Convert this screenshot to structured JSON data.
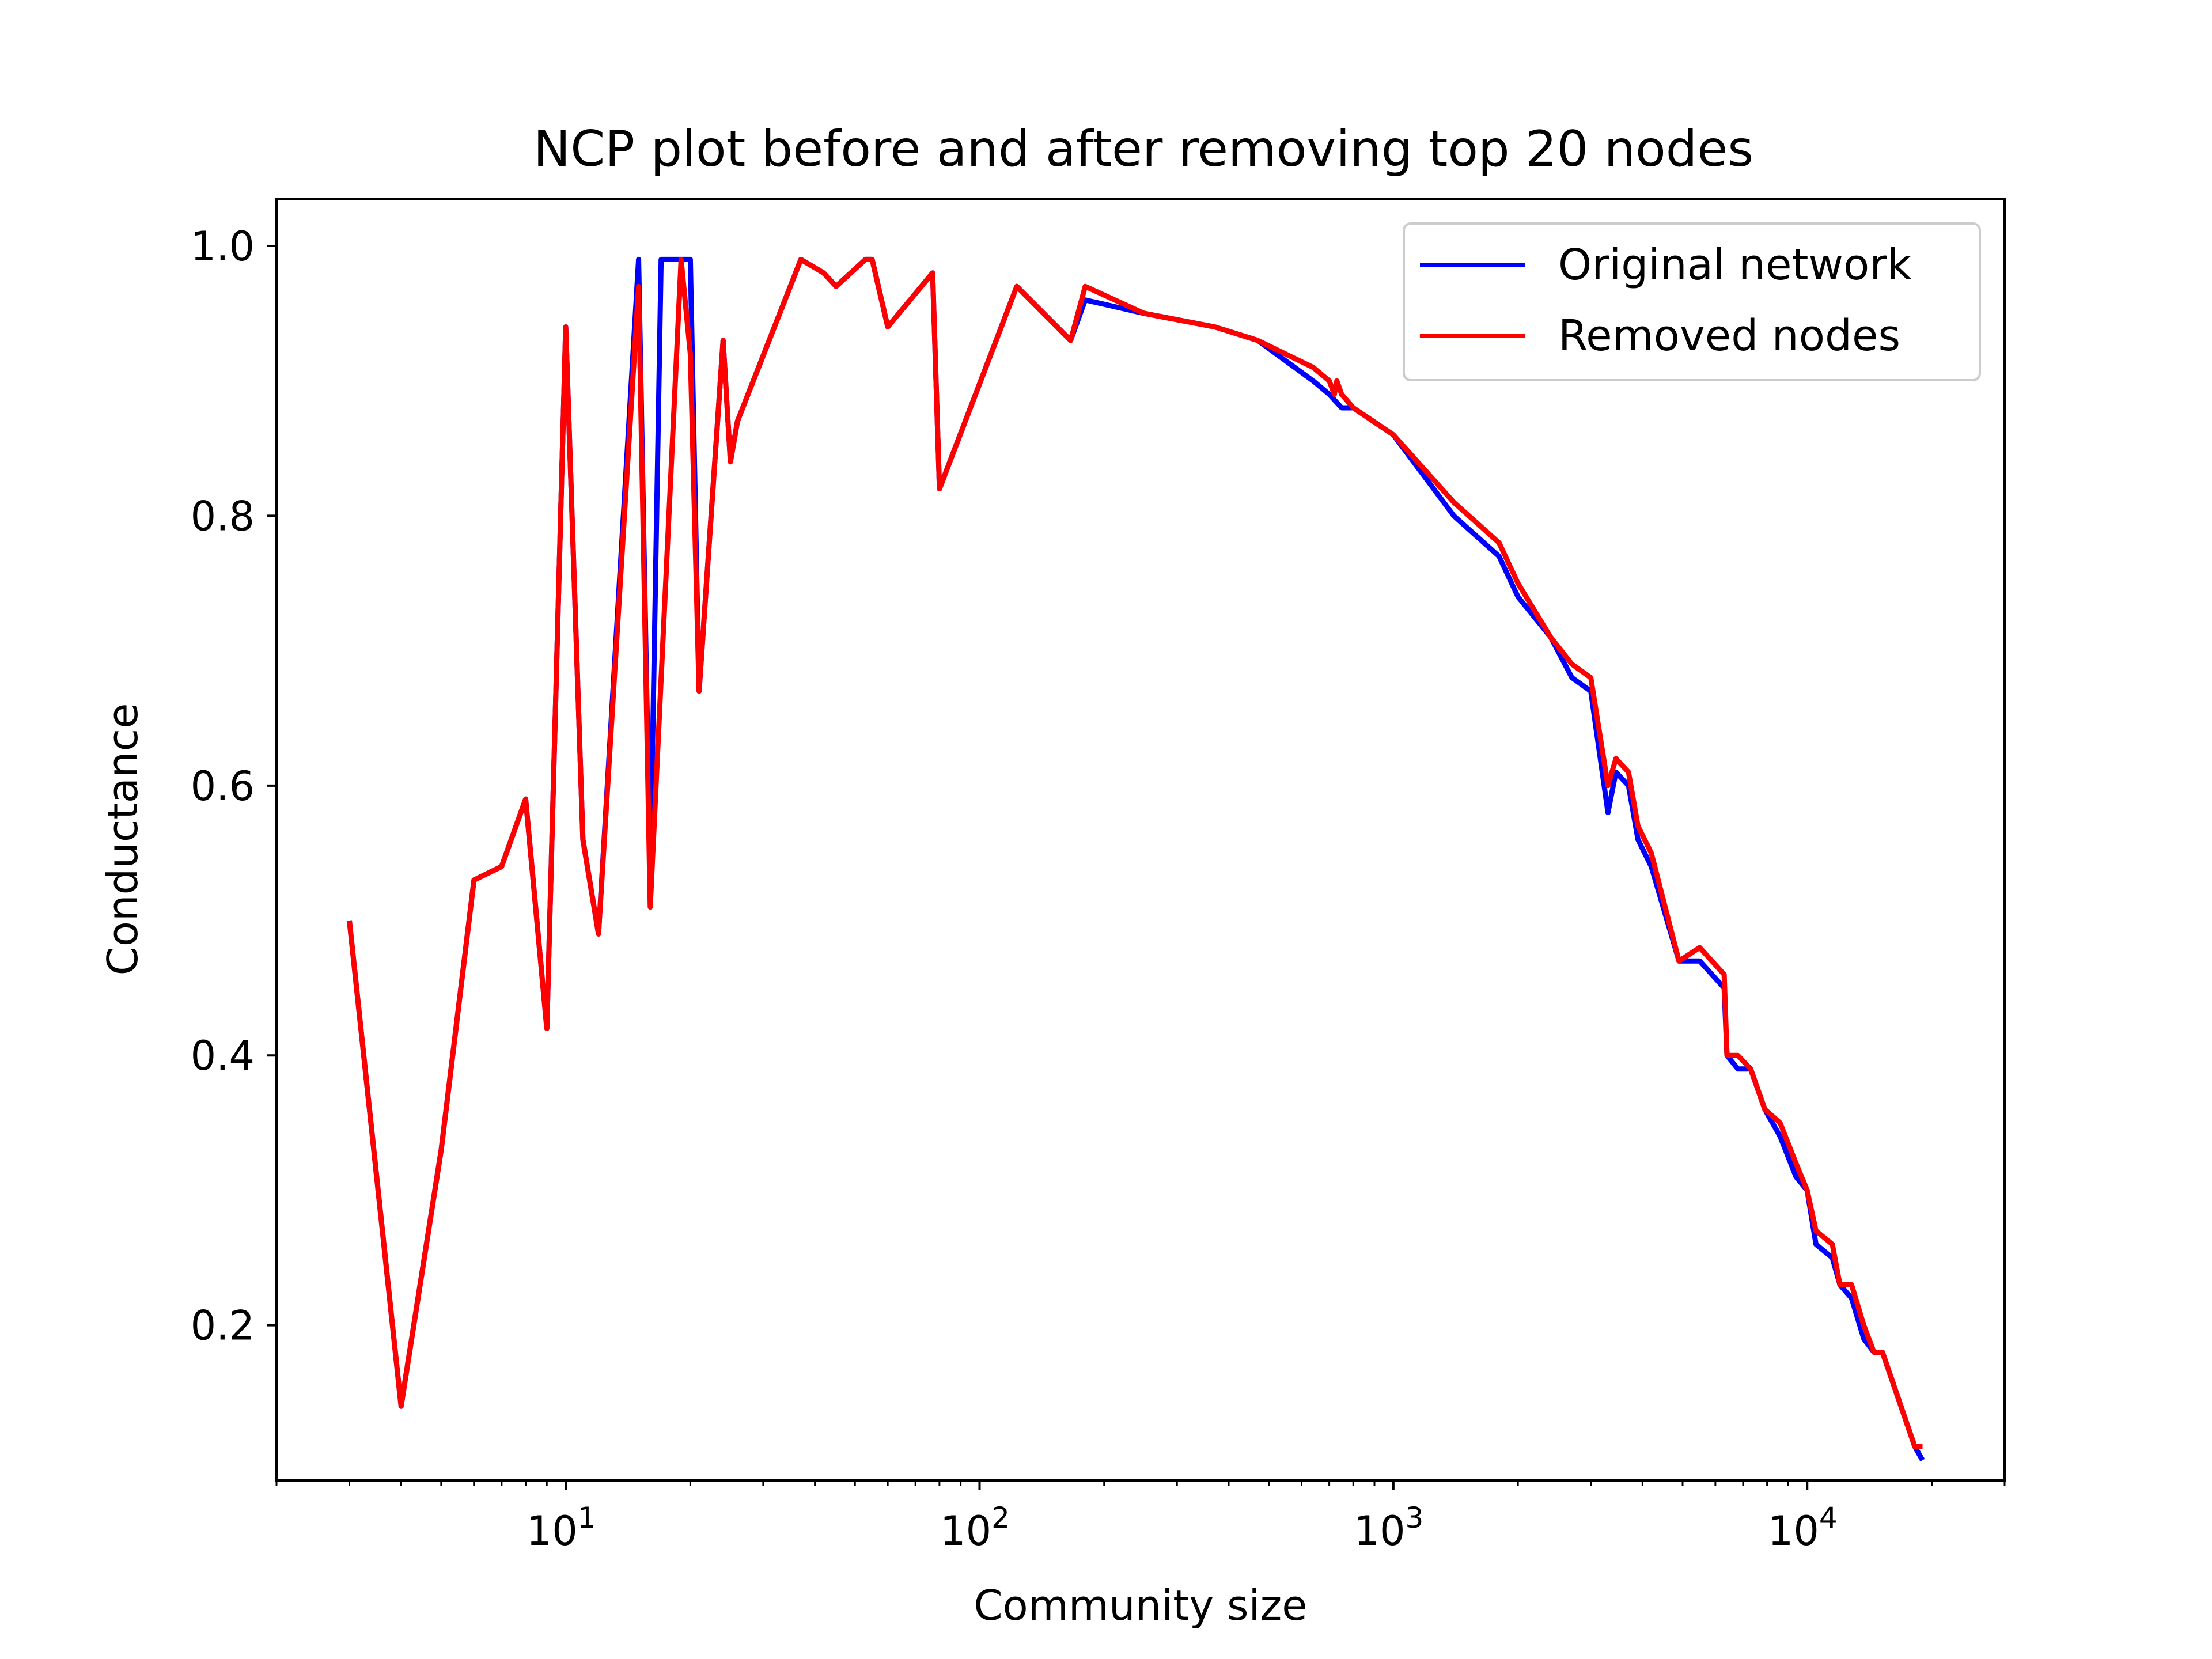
{
  "chart_data": {
    "type": "line",
    "title": "NCP plot before and after removing top 20 nodes",
    "xlabel": "Community size",
    "ylabel": "Conductance",
    "xscale": "log",
    "xlim": [
      2.0,
      30000
    ],
    "ylim": [
      0.085,
      1.035
    ],
    "yticks": [
      {
        "value": 0.2,
        "label": "0.2"
      },
      {
        "value": 0.4,
        "label": "0.4"
      },
      {
        "value": 0.6,
        "label": "0.6"
      },
      {
        "value": 0.8,
        "label": "0.8"
      },
      {
        "value": 1.0,
        "label": "1.0"
      }
    ],
    "xticks": [
      {
        "value": 10,
        "base": "10",
        "exp": "1"
      },
      {
        "value": 100,
        "base": "10",
        "exp": "2"
      },
      {
        "value": 1000,
        "base": "10",
        "exp": "3"
      },
      {
        "value": 10000,
        "base": "10",
        "exp": "4"
      }
    ],
    "legend": {
      "position": "upper right"
    },
    "grid": false,
    "series": [
      {
        "name": "Original network",
        "color": "#0000ff",
        "x": [
          3,
          4,
          5,
          6,
          7,
          8,
          9,
          10,
          11,
          12,
          15,
          16,
          17,
          18,
          19,
          20,
          21,
          24,
          25,
          26,
          37,
          42,
          45,
          53,
          55,
          60,
          77,
          80,
          123,
          166,
          180,
          250,
          370,
          470,
          640,
          700,
          750,
          800,
          1000,
          1400,
          1800,
          2000,
          2400,
          2700,
          3000,
          3300,
          3450,
          3700,
          3900,
          4200,
          4900,
          5500,
          6300,
          6400,
          6800,
          7300,
          7900,
          8600,
          9400,
          10000,
          10500,
          11500,
          12000,
          12800,
          13700,
          14500,
          15200,
          18200,
          19000
        ],
        "y": [
          0.5,
          0.14,
          0.33,
          0.53,
          0.54,
          0.59,
          0.42,
          0.94,
          0.56,
          0.49,
          0.99,
          0.53,
          0.99,
          0.99,
          0.99,
          0.99,
          0.67,
          0.93,
          0.84,
          0.87,
          0.99,
          0.98,
          0.97,
          0.99,
          0.99,
          0.94,
          0.98,
          0.82,
          0.97,
          0.93,
          0.96,
          0.95,
          0.94,
          0.93,
          0.9,
          0.89,
          0.88,
          0.88,
          0.86,
          0.8,
          0.77,
          0.74,
          0.71,
          0.68,
          0.67,
          0.58,
          0.61,
          0.6,
          0.56,
          0.54,
          0.47,
          0.47,
          0.45,
          0.4,
          0.39,
          0.39,
          0.36,
          0.34,
          0.31,
          0.3,
          0.26,
          0.25,
          0.23,
          0.22,
          0.19,
          0.18,
          0.18,
          0.11,
          0.1
        ]
      },
      {
        "name": "Removed nodes",
        "color": "#ff0000",
        "x": [
          3,
          4,
          5,
          6,
          7,
          8,
          9,
          10,
          11,
          12,
          15,
          16,
          19,
          20,
          21,
          24,
          25,
          26,
          37,
          42,
          45,
          53,
          55,
          60,
          77,
          80,
          123,
          166,
          180,
          250,
          370,
          470,
          640,
          700,
          720,
          730,
          750,
          800,
          1000,
          1400,
          1800,
          2000,
          2400,
          2700,
          3000,
          3300,
          3450,
          3700,
          3900,
          4200,
          4900,
          5500,
          6300,
          6400,
          6800,
          7300,
          7900,
          8600,
          9400,
          10000,
          10500,
          11500,
          12000,
          12800,
          13700,
          14500,
          15200,
          18200,
          19000
        ],
        "y": [
          0.5,
          0.14,
          0.33,
          0.53,
          0.54,
          0.59,
          0.42,
          0.94,
          0.56,
          0.49,
          0.97,
          0.51,
          0.99,
          0.92,
          0.67,
          0.93,
          0.84,
          0.87,
          0.99,
          0.98,
          0.97,
          0.99,
          0.99,
          0.94,
          0.98,
          0.82,
          0.97,
          0.93,
          0.97,
          0.95,
          0.94,
          0.93,
          0.91,
          0.9,
          0.89,
          0.9,
          0.89,
          0.88,
          0.86,
          0.81,
          0.78,
          0.75,
          0.71,
          0.69,
          0.68,
          0.6,
          0.62,
          0.61,
          0.57,
          0.55,
          0.47,
          0.48,
          0.46,
          0.4,
          0.4,
          0.39,
          0.36,
          0.35,
          0.32,
          0.3,
          0.27,
          0.26,
          0.23,
          0.23,
          0.2,
          0.18,
          0.18,
          0.11,
          0.11
        ]
      }
    ]
  }
}
